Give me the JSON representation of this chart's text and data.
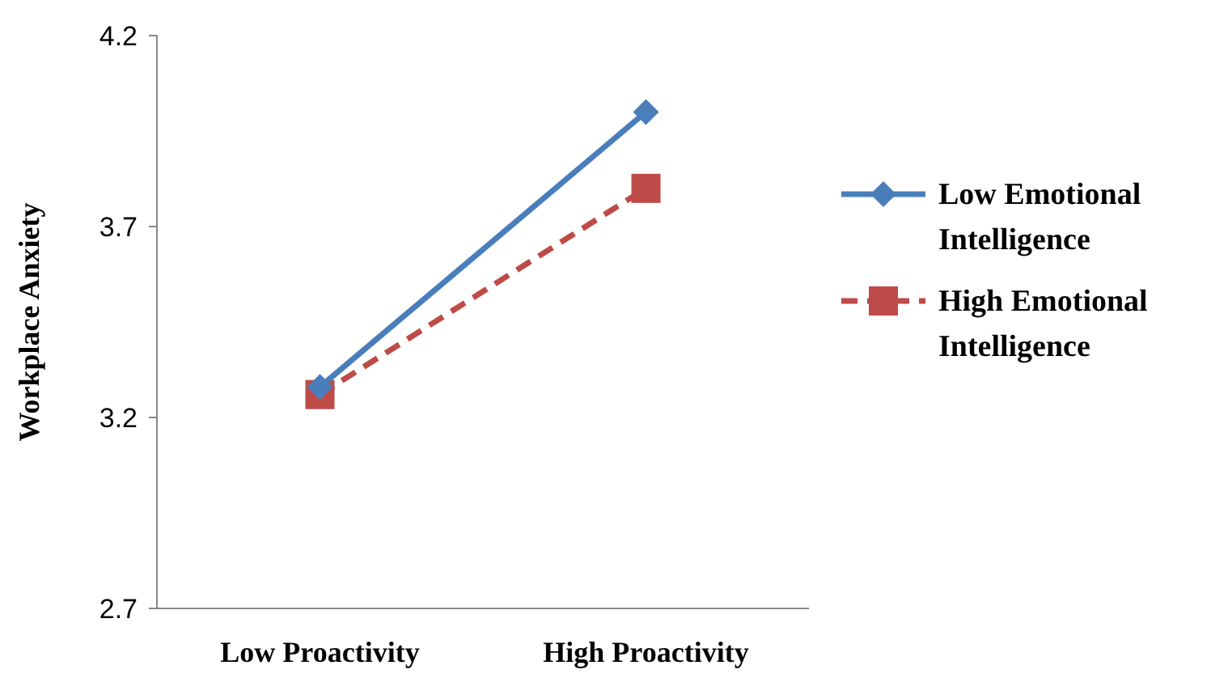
{
  "chart_data": {
    "type": "line",
    "ylabel": "Workplace Anxiety",
    "categories": [
      "Low Proactivity",
      "High Proactivity"
    ],
    "ylim": [
      2.7,
      4.2
    ],
    "yticks": [
      2.7,
      3.2,
      3.7,
      4.2
    ],
    "grid": false,
    "legend": "right",
    "series": [
      {
        "name": "Low Emotional Intelligence",
        "color": "#4a7ebb",
        "values": [
          3.28,
          4.0
        ],
        "marker": "diamond",
        "line_style": "solid"
      },
      {
        "name": "High Emotional Intelligence",
        "color": "#be4b48",
        "values": [
          3.26,
          3.8
        ],
        "marker": "square",
        "line_style": "dashed"
      }
    ]
  }
}
